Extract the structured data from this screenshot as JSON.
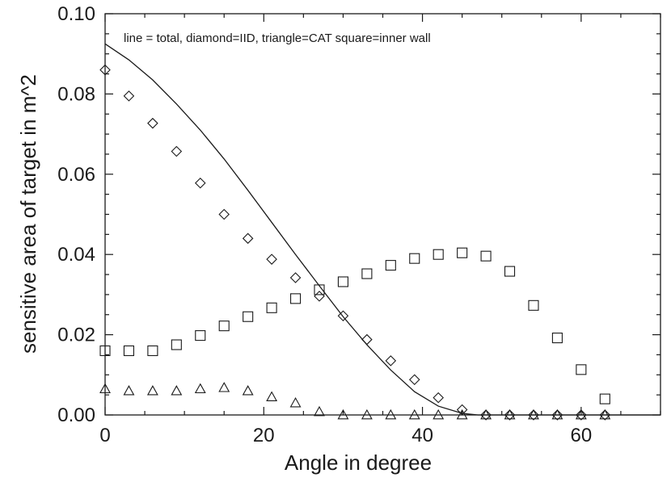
{
  "chart_data": {
    "type": "scatter",
    "title": "",
    "xlabel": "Angle in degree",
    "ylabel": "sensitive area of target in m^2",
    "annotation": "line = total, diamond=IID, triangle=CAT  square=inner wall",
    "xlim": [
      0,
      70
    ],
    "ylim": [
      0,
      0.1
    ],
    "x_ticks": [
      "0",
      "20",
      "40",
      "60"
    ],
    "y_ticks": [
      "0.00",
      "0.02",
      "0.04",
      "0.06",
      "0.08",
      "0.10"
    ],
    "grid": false,
    "series": [
      {
        "marker": "line",
        "x": [
          0,
          3,
          6,
          9,
          12,
          15,
          18,
          21,
          24,
          27,
          30,
          33,
          36,
          39,
          42,
          45,
          47,
          48,
          50,
          55,
          60,
          65,
          70
        ],
        "y": [
          0.0925,
          0.0885,
          0.0835,
          0.0775,
          0.071,
          0.0638,
          0.056,
          0.048,
          0.04,
          0.0322,
          0.0245,
          0.0175,
          0.0112,
          0.0058,
          0.0022,
          0.0004,
          0.0,
          0.0,
          0.0,
          0.0,
          0.0,
          0.0,
          0.0
        ]
      },
      {
        "marker": "diamond",
        "x": [
          0,
          3,
          6,
          9,
          12,
          15,
          18,
          21,
          24,
          27,
          30,
          33,
          36,
          39,
          42,
          45,
          48,
          51,
          54,
          57,
          60,
          63
        ],
        "y": [
          0.086,
          0.0795,
          0.0727,
          0.0657,
          0.0578,
          0.05,
          0.044,
          0.0388,
          0.0342,
          0.0296,
          0.0247,
          0.0188,
          0.0135,
          0.0088,
          0.0043,
          0.0013,
          0.0,
          0.0,
          0.0,
          0.0,
          0.0,
          0.0
        ]
      },
      {
        "marker": "triangle",
        "x": [
          0,
          3,
          6,
          9,
          12,
          15,
          18,
          21,
          24,
          27,
          30,
          33,
          36,
          39,
          42,
          45,
          48,
          51,
          54,
          57,
          60,
          63
        ],
        "y": [
          0.0065,
          0.006,
          0.006,
          0.006,
          0.0065,
          0.0068,
          0.006,
          0.0045,
          0.003,
          0.0008,
          0.0,
          0.0,
          0.0,
          0.0,
          0.0,
          0.0,
          0.0,
          0.0,
          0.0,
          0.0,
          0.0,
          0.0
        ]
      },
      {
        "marker": "square",
        "x": [
          0,
          3,
          6,
          9,
          12,
          15,
          18,
          21,
          24,
          27,
          30,
          33,
          36,
          39,
          42,
          45,
          48,
          51,
          54,
          57,
          60,
          63
        ],
        "y": [
          0.016,
          0.016,
          0.016,
          0.0175,
          0.0198,
          0.0222,
          0.0245,
          0.0267,
          0.029,
          0.0312,
          0.0332,
          0.0352,
          0.0373,
          0.039,
          0.04,
          0.0404,
          0.0396,
          0.0358,
          0.0273,
          0.0192,
          0.0113,
          0.004
        ]
      }
    ]
  },
  "colors": {
    "ink": "#1a1a1a",
    "background": "#ffffff"
  }
}
